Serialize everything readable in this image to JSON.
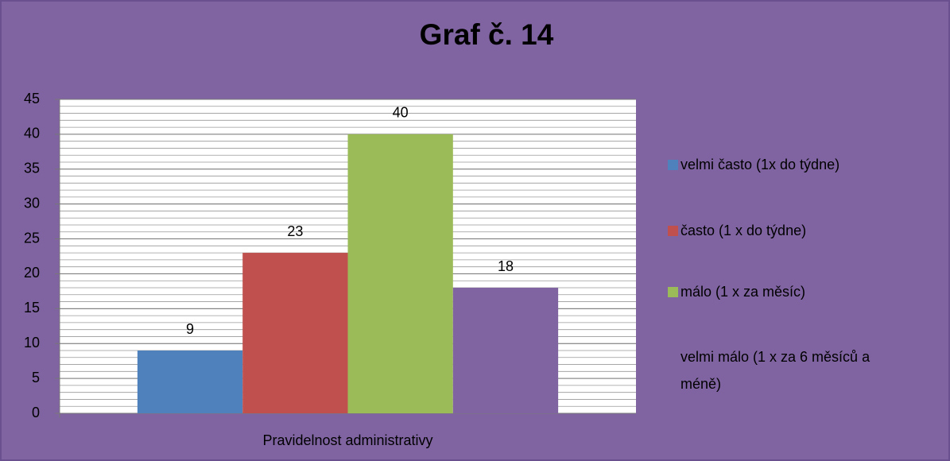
{
  "chart_data": {
    "type": "bar",
    "title": "Graf č. 14",
    "categories": [
      "Pravidelnost administrativy"
    ],
    "series": [
      {
        "name": "velmi často (1x do týdne)",
        "color": "#4f81bd",
        "values": [
          9
        ]
      },
      {
        "name": "často (1 x do týdne)",
        "color": "#c0504d",
        "values": [
          23
        ]
      },
      {
        "name": "málo (1 x za měsíc)",
        "color": "#9bbb59",
        "values": [
          40
        ]
      },
      {
        "name": "velmi málo (1 x za 6 měsíců a méně)",
        "color": "#8064a2",
        "values": [
          18
        ]
      }
    ],
    "ylim": [
      0,
      45
    ],
    "yticks": [
      0,
      5,
      10,
      15,
      20,
      25,
      30,
      35,
      40,
      45
    ],
    "yminorticks": [
      0,
      1,
      2,
      3,
      4,
      5,
      6,
      7,
      8,
      9,
      10,
      11,
      12,
      13,
      14,
      15,
      16,
      17,
      18,
      19,
      20,
      21,
      22,
      23,
      24,
      25,
      26,
      27,
      28,
      29,
      30,
      31,
      32,
      33,
      34,
      35,
      36,
      37,
      38,
      39,
      40,
      41,
      42,
      43,
      44,
      45
    ],
    "grid": true,
    "legend": "right"
  }
}
